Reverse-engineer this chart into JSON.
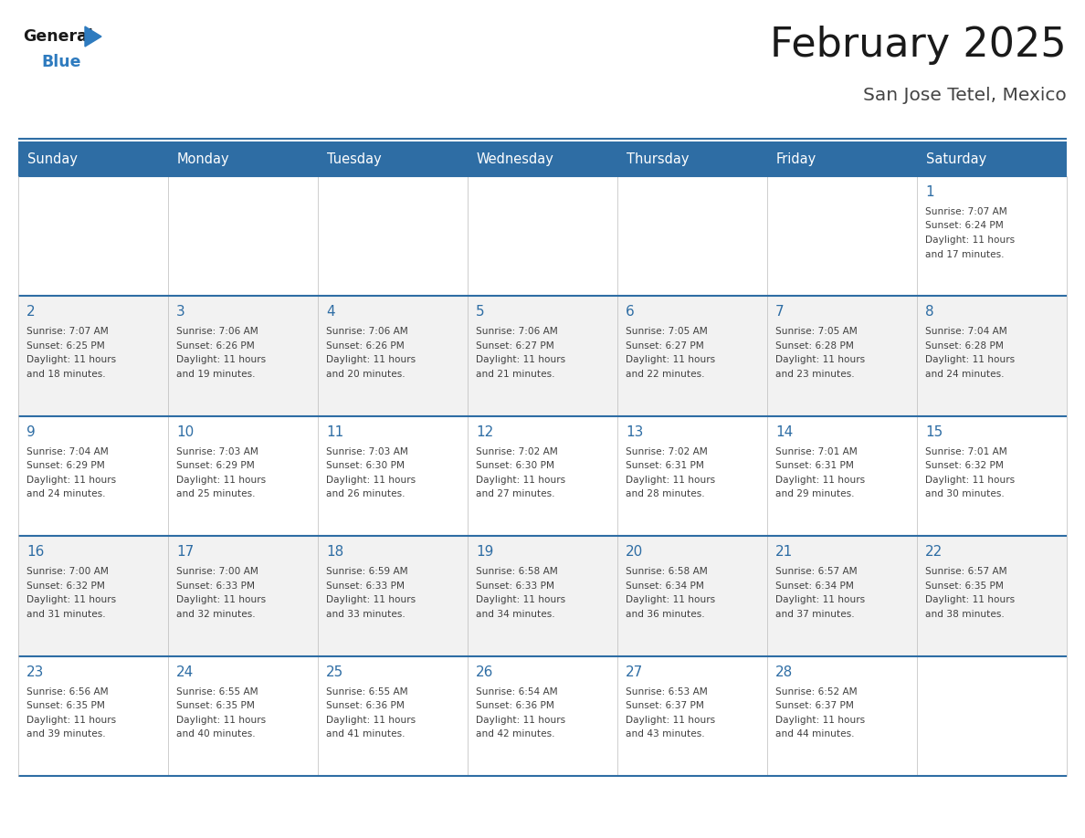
{
  "title": "February 2025",
  "subtitle": "San Jose Tetel, Mexico",
  "days_of_week": [
    "Sunday",
    "Monday",
    "Tuesday",
    "Wednesday",
    "Thursday",
    "Friday",
    "Saturday"
  ],
  "header_bg": "#2E6DA4",
  "header_text_color": "#FFFFFF",
  "row_bg": [
    "#FFFFFF",
    "#F2F2F2",
    "#FFFFFF",
    "#F2F2F2",
    "#FFFFFF"
  ],
  "day_number_color": "#2E6DA4",
  "info_text_color": "#404040",
  "border_color": "#2E6DA4",
  "title_color": "#1a1a1a",
  "subtitle_color": "#444444",
  "logo_general_color": "#1a1a1a",
  "logo_blue_color": "#2E7BBF",
  "weeks": [
    {
      "days": [
        {
          "day": null,
          "sunrise": null,
          "sunset": null,
          "daylight": null
        },
        {
          "day": null,
          "sunrise": null,
          "sunset": null,
          "daylight": null
        },
        {
          "day": null,
          "sunrise": null,
          "sunset": null,
          "daylight": null
        },
        {
          "day": null,
          "sunrise": null,
          "sunset": null,
          "daylight": null
        },
        {
          "day": null,
          "sunrise": null,
          "sunset": null,
          "daylight": null
        },
        {
          "day": null,
          "sunrise": null,
          "sunset": null,
          "daylight": null
        },
        {
          "day": 1,
          "sunrise": "7:07 AM",
          "sunset": "6:24 PM",
          "daylight": "11 hours and 17 minutes."
        }
      ]
    },
    {
      "days": [
        {
          "day": 2,
          "sunrise": "7:07 AM",
          "sunset": "6:25 PM",
          "daylight": "11 hours and 18 minutes."
        },
        {
          "day": 3,
          "sunrise": "7:06 AM",
          "sunset": "6:26 PM",
          "daylight": "11 hours and 19 minutes."
        },
        {
          "day": 4,
          "sunrise": "7:06 AM",
          "sunset": "6:26 PM",
          "daylight": "11 hours and 20 minutes."
        },
        {
          "day": 5,
          "sunrise": "7:06 AM",
          "sunset": "6:27 PM",
          "daylight": "11 hours and 21 minutes."
        },
        {
          "day": 6,
          "sunrise": "7:05 AM",
          "sunset": "6:27 PM",
          "daylight": "11 hours and 22 minutes."
        },
        {
          "day": 7,
          "sunrise": "7:05 AM",
          "sunset": "6:28 PM",
          "daylight": "11 hours and 23 minutes."
        },
        {
          "day": 8,
          "sunrise": "7:04 AM",
          "sunset": "6:28 PM",
          "daylight": "11 hours and 24 minutes."
        }
      ]
    },
    {
      "days": [
        {
          "day": 9,
          "sunrise": "7:04 AM",
          "sunset": "6:29 PM",
          "daylight": "11 hours and 24 minutes."
        },
        {
          "day": 10,
          "sunrise": "7:03 AM",
          "sunset": "6:29 PM",
          "daylight": "11 hours and 25 minutes."
        },
        {
          "day": 11,
          "sunrise": "7:03 AM",
          "sunset": "6:30 PM",
          "daylight": "11 hours and 26 minutes."
        },
        {
          "day": 12,
          "sunrise": "7:02 AM",
          "sunset": "6:30 PM",
          "daylight": "11 hours and 27 minutes."
        },
        {
          "day": 13,
          "sunrise": "7:02 AM",
          "sunset": "6:31 PM",
          "daylight": "11 hours and 28 minutes."
        },
        {
          "day": 14,
          "sunrise": "7:01 AM",
          "sunset": "6:31 PM",
          "daylight": "11 hours and 29 minutes."
        },
        {
          "day": 15,
          "sunrise": "7:01 AM",
          "sunset": "6:32 PM",
          "daylight": "11 hours and 30 minutes."
        }
      ]
    },
    {
      "days": [
        {
          "day": 16,
          "sunrise": "7:00 AM",
          "sunset": "6:32 PM",
          "daylight": "11 hours and 31 minutes."
        },
        {
          "day": 17,
          "sunrise": "7:00 AM",
          "sunset": "6:33 PM",
          "daylight": "11 hours and 32 minutes."
        },
        {
          "day": 18,
          "sunrise": "6:59 AM",
          "sunset": "6:33 PM",
          "daylight": "11 hours and 33 minutes."
        },
        {
          "day": 19,
          "sunrise": "6:58 AM",
          "sunset": "6:33 PM",
          "daylight": "11 hours and 34 minutes."
        },
        {
          "day": 20,
          "sunrise": "6:58 AM",
          "sunset": "6:34 PM",
          "daylight": "11 hours and 36 minutes."
        },
        {
          "day": 21,
          "sunrise": "6:57 AM",
          "sunset": "6:34 PM",
          "daylight": "11 hours and 37 minutes."
        },
        {
          "day": 22,
          "sunrise": "6:57 AM",
          "sunset": "6:35 PM",
          "daylight": "11 hours and 38 minutes."
        }
      ]
    },
    {
      "days": [
        {
          "day": 23,
          "sunrise": "6:56 AM",
          "sunset": "6:35 PM",
          "daylight": "11 hours and 39 minutes."
        },
        {
          "day": 24,
          "sunrise": "6:55 AM",
          "sunset": "6:35 PM",
          "daylight": "11 hours and 40 minutes."
        },
        {
          "day": 25,
          "sunrise": "6:55 AM",
          "sunset": "6:36 PM",
          "daylight": "11 hours and 41 minutes."
        },
        {
          "day": 26,
          "sunrise": "6:54 AM",
          "sunset": "6:36 PM",
          "daylight": "11 hours and 42 minutes."
        },
        {
          "day": 27,
          "sunrise": "6:53 AM",
          "sunset": "6:37 PM",
          "daylight": "11 hours and 43 minutes."
        },
        {
          "day": 28,
          "sunrise": "6:52 AM",
          "sunset": "6:37 PM",
          "daylight": "11 hours and 44 minutes."
        },
        {
          "day": null,
          "sunrise": null,
          "sunset": null,
          "daylight": null
        }
      ]
    }
  ]
}
